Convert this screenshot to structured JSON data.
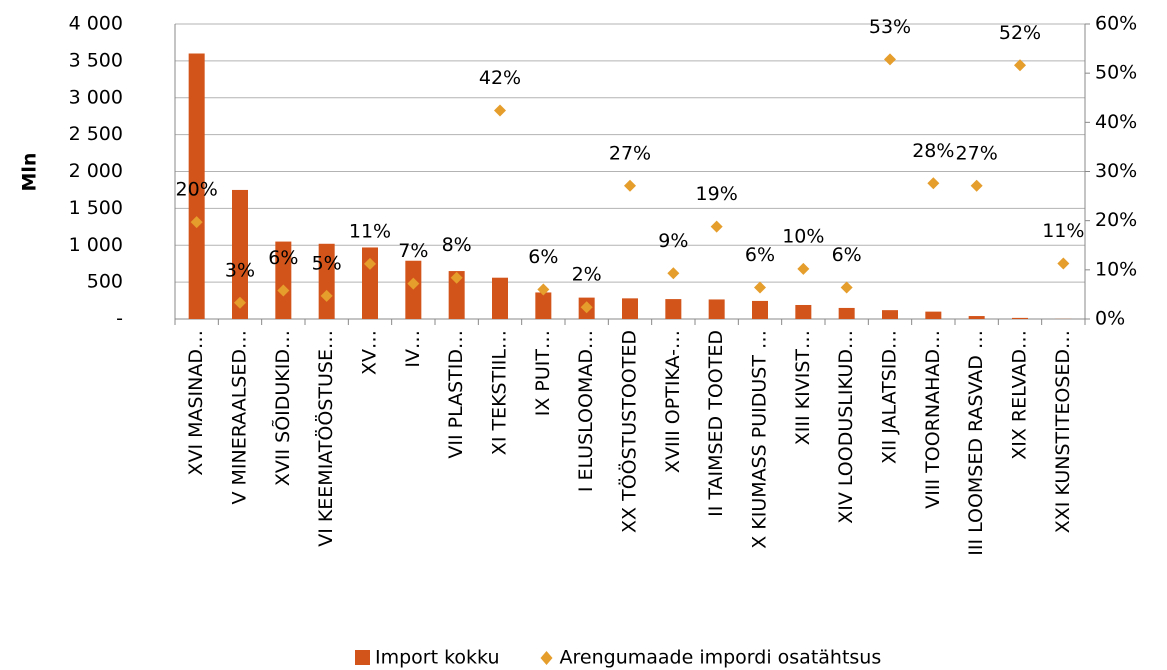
{
  "chart_data": {
    "type": "bar",
    "y_label": "Mln",
    "categories": [
      "XVI MASINAD…",
      "V MINERAALSED…",
      "XVII SÕIDUKID…",
      "VI KEEMIATÖÖSTUSE…",
      "XV…",
      "IV…",
      "VII PLASTID…",
      "XI TEKSTIIL…",
      "IX PUIT…",
      "I ELUSLOOMAD…",
      "XX TÖÖSTUSTOOTED",
      "XVIII OPTIKA-…",
      "II TAIMSED TOOTED",
      "X KIUMASS PUIDUST …",
      "XIII KIVIST…",
      "XIV LOODUSLIKUD…",
      "XII JALATSID…",
      "VIII TOORNAHAD…",
      "III LOOMSED RASVAD …",
      "XIX RELVAD…",
      "XXI KUNSTITEOSED…"
    ],
    "series": [
      {
        "name": "Import kokku",
        "type": "bar",
        "color": "#d3541a",
        "values": [
          3600,
          1750,
          1050,
          1020,
          970,
          790,
          650,
          560,
          360,
          290,
          280,
          270,
          265,
          245,
          190,
          150,
          120,
          100,
          40,
          15,
          2
        ]
      },
      {
        "name": "Arengumaade impordi osatähtsus",
        "type": "scatter",
        "axis": "y2",
        "color": "#e59d2c",
        "values": [
          19.7,
          3.3,
          5.8,
          4.7,
          11.2,
          7.2,
          8.4,
          42.4,
          6.0,
          2.4,
          27.1,
          9.3,
          18.8,
          6.4,
          10.2,
          6.4,
          52.8,
          27.6,
          27.1,
          51.6,
          11.3
        ],
        "value_labels": [
          "20%",
          "3%",
          "6%",
          "5%",
          "11%",
          "7%",
          "8%",
          "42%",
          "6%",
          "2%",
          "27%",
          "9%",
          "19%",
          "6%",
          "10%",
          "6%",
          "53%",
          "28%",
          "27%",
          "52%",
          "11%"
        ]
      }
    ],
    "ylim": [
      0,
      4000
    ],
    "yticks": [
      {
        "value": 0,
        "label": "-"
      },
      500,
      {
        "value": 1000,
        "label": "1 000"
      },
      {
        "value": 1500,
        "label": "1 500"
      },
      {
        "value": 2000,
        "label": "2 000"
      },
      {
        "value": 2500,
        "label": "2 500"
      },
      {
        "value": 3000,
        "label": "3 000"
      },
      {
        "value": 3500,
        "label": "3 500"
      },
      {
        "value": 4000,
        "label": "4 000"
      }
    ],
    "y2lim": [
      0,
      60
    ],
    "y2ticks": [
      {
        "value": 0,
        "label": "0%"
      },
      {
        "value": 10,
        "label": "10%"
      },
      {
        "value": 20,
        "label": "20%"
      },
      {
        "value": 30,
        "label": "30%"
      },
      {
        "value": 40,
        "label": "40%"
      },
      {
        "value": 50,
        "label": "50%"
      },
      {
        "value": 60,
        "label": "60%"
      }
    ],
    "grid": true,
    "legend": "bottom"
  }
}
